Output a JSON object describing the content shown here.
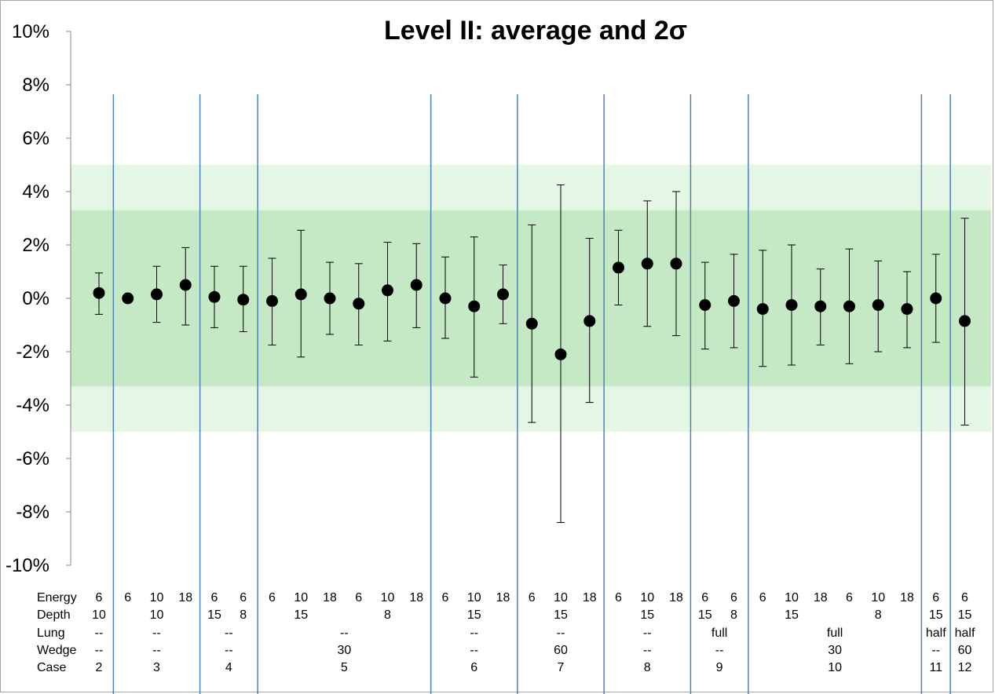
{
  "chart_data": {
    "type": "scatter",
    "title": "Level II: average and 2σ",
    "ylim": [
      -10,
      10
    ],
    "yticks": [
      10,
      8,
      6,
      4,
      2,
      0,
      -2,
      -4,
      -6,
      -8,
      -10
    ],
    "ytick_labels": [
      "10%",
      "8%",
      "6%",
      "4%",
      "2%",
      "0%",
      "-2%",
      "-4%",
      "-6%",
      "-8%",
      "-10%"
    ],
    "bands": [
      {
        "name": "outer",
        "low": -5,
        "high": 5,
        "color": "#e4f7e4"
      },
      {
        "name": "inner",
        "low": -3.3,
        "high": 3.3,
        "color": "#c4e9c4"
      }
    ],
    "row_labels": [
      "Energy",
      "Depth",
      "Lung",
      "Wedge",
      "Case"
    ],
    "points": [
      {
        "energy": "6",
        "mean": 0.2,
        "low": -0.6,
        "high": 0.95
      },
      {
        "energy": "6",
        "mean": 0.0,
        "low": null,
        "high": null
      },
      {
        "energy": "10",
        "mean": 0.15,
        "low": -0.9,
        "high": 1.2
      },
      {
        "energy": "18",
        "mean": 0.5,
        "low": -1.0,
        "high": 1.9
      },
      {
        "energy": "6",
        "mean": 0.05,
        "low": -1.1,
        "high": 1.2
      },
      {
        "energy": "6",
        "mean": -0.05,
        "low": -1.25,
        "high": 1.2
      },
      {
        "energy": "6",
        "mean": -0.1,
        "low": -1.75,
        "high": 1.5
      },
      {
        "energy": "10",
        "mean": 0.15,
        "low": -2.2,
        "high": 2.55
      },
      {
        "energy": "18",
        "mean": 0.0,
        "low": -1.35,
        "high": 1.35
      },
      {
        "energy": "6",
        "mean": -0.2,
        "low": -1.75,
        "high": 1.3
      },
      {
        "energy": "10",
        "mean": 0.3,
        "low": -1.6,
        "high": 2.1
      },
      {
        "energy": "18",
        "mean": 0.5,
        "low": -1.1,
        "high": 2.05
      },
      {
        "energy": "6",
        "mean": 0.0,
        "low": -1.5,
        "high": 1.55
      },
      {
        "energy": "10",
        "mean": -0.3,
        "low": -2.95,
        "high": 2.3
      },
      {
        "energy": "18",
        "mean": 0.15,
        "low": -0.95,
        "high": 1.25
      },
      {
        "energy": "6",
        "mean": -0.95,
        "low": -4.65,
        "high": 2.75
      },
      {
        "energy": "10",
        "mean": -2.1,
        "low": -8.4,
        "high": 4.25
      },
      {
        "energy": "18",
        "mean": -0.85,
        "low": -3.9,
        "high": 2.25
      },
      {
        "energy": "6",
        "mean": 1.15,
        "low": -0.25,
        "high": 2.55
      },
      {
        "energy": "10",
        "mean": 1.3,
        "low": -1.05,
        "high": 3.65
      },
      {
        "energy": "18",
        "mean": 1.3,
        "low": -1.4,
        "high": 4.0
      },
      {
        "energy": "6",
        "mean": -0.25,
        "low": -1.9,
        "high": 1.35
      },
      {
        "energy": "6",
        "mean": -0.1,
        "low": -1.85,
        "high": 1.65
      },
      {
        "energy": "6",
        "mean": -0.4,
        "low": -2.55,
        "high": 1.8
      },
      {
        "energy": "10",
        "mean": -0.25,
        "low": -2.5,
        "high": 2.0
      },
      {
        "energy": "18",
        "mean": -0.3,
        "low": -1.75,
        "high": 1.1
      },
      {
        "energy": "6",
        "mean": -0.3,
        "low": -2.45,
        "high": 1.85
      },
      {
        "energy": "10",
        "mean": -0.25,
        "low": -2.0,
        "high": 1.4
      },
      {
        "energy": "18",
        "mean": -0.4,
        "low": -1.85,
        "high": 1.0
      },
      {
        "energy": "6",
        "mean": 0.0,
        "low": -1.65,
        "high": 1.65
      },
      {
        "energy": "6",
        "mean": -0.85,
        "low": -4.75,
        "high": 3.0
      }
    ],
    "groups": [
      {
        "case": "2",
        "depth_labels": [
          {
            "at": 0,
            "text": "10"
          }
        ],
        "lung": "--",
        "wedge": "--",
        "start": 0,
        "end": 0
      },
      {
        "case": "3",
        "depth_labels": [
          {
            "at": 2,
            "text": "10"
          }
        ],
        "lung": "--",
        "wedge": "--",
        "start": 1,
        "end": 3
      },
      {
        "case": "4",
        "depth_labels": [
          {
            "at": 4,
            "text": "15"
          },
          {
            "at": 5,
            "text": "8"
          }
        ],
        "lung": "--",
        "wedge": "--",
        "start": 4,
        "end": 5
      },
      {
        "case": "5",
        "depth_labels": [
          {
            "at": 7,
            "text": "15"
          },
          {
            "at": 10,
            "text": "8"
          }
        ],
        "lung": "--",
        "wedge": "30",
        "start": 6,
        "end": 11
      },
      {
        "case": "6",
        "depth_labels": [
          {
            "at": 13,
            "text": "15"
          }
        ],
        "lung": "--",
        "wedge": "--",
        "start": 12,
        "end": 14
      },
      {
        "case": "7",
        "depth_labels": [
          {
            "at": 16,
            "text": "15"
          }
        ],
        "lung": "--",
        "wedge": "60",
        "start": 15,
        "end": 17
      },
      {
        "case": "8",
        "depth_labels": [
          {
            "at": 19,
            "text": "15"
          }
        ],
        "lung": "--",
        "wedge": "--",
        "start": 18,
        "end": 20
      },
      {
        "case": "9",
        "depth_labels": [
          {
            "at": 21,
            "text": "15"
          },
          {
            "at": 22,
            "text": "8"
          }
        ],
        "lung": "full",
        "wedge": "--",
        "start": 21,
        "end": 22
      },
      {
        "case": "10",
        "depth_labels": [
          {
            "at": 24,
            "text": "15"
          },
          {
            "at": 27,
            "text": "8"
          }
        ],
        "lung": "full",
        "wedge": "30",
        "start": 23,
        "end": 28
      },
      {
        "case": "11",
        "depth_labels": [
          {
            "at": 29,
            "text": "15"
          }
        ],
        "lung": "half",
        "wedge": "--",
        "start": 29,
        "end": 29
      },
      {
        "case": "12",
        "depth_labels": [
          {
            "at": 30,
            "text": "15"
          }
        ],
        "lung": "half",
        "wedge": "60",
        "start": 30,
        "end": 30
      }
    ]
  }
}
